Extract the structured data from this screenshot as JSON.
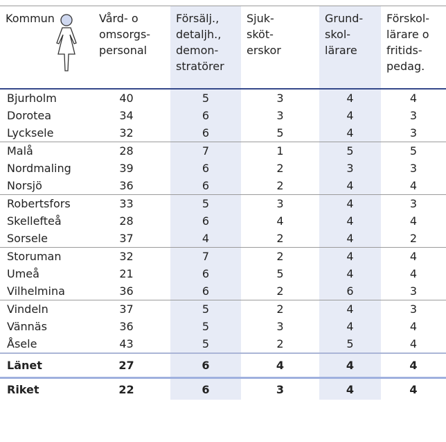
{
  "table": {
    "header": [
      "Kommun",
      "Vård- o\nomsorgs-\npersonal",
      "Försälj.,\ndetaljh.,\ndemon-\nstratörer",
      "Sjuk-\nsköt-\nerskor",
      "Grund-\nskol-\nlärare",
      "Förskol-\nlärare o\nfritids-\npedag."
    ],
    "rows": [
      [
        "Bjurholm",
        40,
        5,
        3,
        4,
        4
      ],
      [
        "Dorotea",
        34,
        6,
        3,
        4,
        3
      ],
      [
        "Lycksele",
        32,
        6,
        5,
        4,
        3
      ],
      [
        "Malå",
        28,
        7,
        1,
        5,
        5
      ],
      [
        "Nordmaling",
        39,
        6,
        2,
        3,
        3
      ],
      [
        "Norsjö",
        36,
        6,
        2,
        4,
        4
      ],
      [
        "Robertsfors",
        33,
        5,
        3,
        4,
        3
      ],
      [
        "Skellefteå",
        28,
        6,
        4,
        4,
        4
      ],
      [
        "Sorsele",
        37,
        4,
        2,
        4,
        2
      ],
      [
        "Storuman",
        32,
        7,
        2,
        4,
        4
      ],
      [
        "Umeå",
        21,
        6,
        5,
        4,
        4
      ],
      [
        "Vilhelmina",
        36,
        6,
        2,
        6,
        3
      ],
      [
        "Vindeln",
        37,
        5,
        2,
        4,
        3
      ],
      [
        "Vännäs",
        36,
        5,
        3,
        4,
        4
      ],
      [
        "Åsele",
        43,
        5,
        2,
        5,
        4
      ]
    ],
    "totals": [
      [
        "Länet",
        27,
        6,
        4,
        4,
        4
      ],
      [
        "Riket",
        22,
        6,
        3,
        4,
        4
      ]
    ]
  }
}
